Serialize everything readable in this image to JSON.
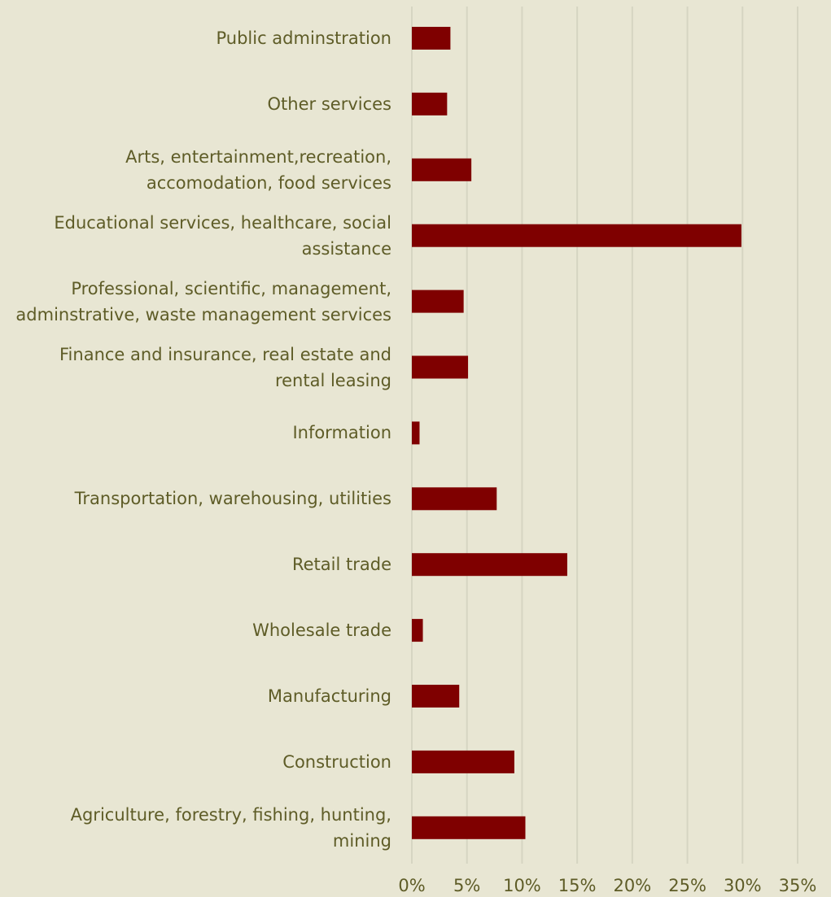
{
  "chart_data": {
    "type": "barh",
    "categories": [
      "Public adminstration",
      "Other services",
      "Arts, entertainment,recreation,\naccomodation, food services",
      "Educational services, healthcare, social\nassistance",
      "Professional, scientific, management,\nadminstrative, waste management services",
      "Finance and insurance, real estate and\nrental leasing",
      "Information",
      "Transportation, warehousing, utilities",
      "Retail trade",
      "Wholesale trade",
      "Manufacturing",
      "Construction",
      "Agriculture, forestry, fishing, hunting,\nmining"
    ],
    "values": [
      3.5,
      3.2,
      5.4,
      29.9,
      4.7,
      5.1,
      0.7,
      7.7,
      14.1,
      1.0,
      4.3,
      9.3,
      10.3
    ],
    "color": "#7f0000",
    "xlim": [
      0,
      35
    ],
    "xticks": [
      {
        "value": 0,
        "label": "0%"
      },
      {
        "value": 5,
        "label": "5%"
      },
      {
        "value": 10,
        "label": "10%"
      },
      {
        "value": 15,
        "label": "15%"
      },
      {
        "value": 20,
        "label": "20%"
      },
      {
        "value": 25,
        "label": "25%"
      },
      {
        "value": 30,
        "label": "30%"
      },
      {
        "value": 35,
        "label": "35%"
      }
    ],
    "grid": true
  }
}
